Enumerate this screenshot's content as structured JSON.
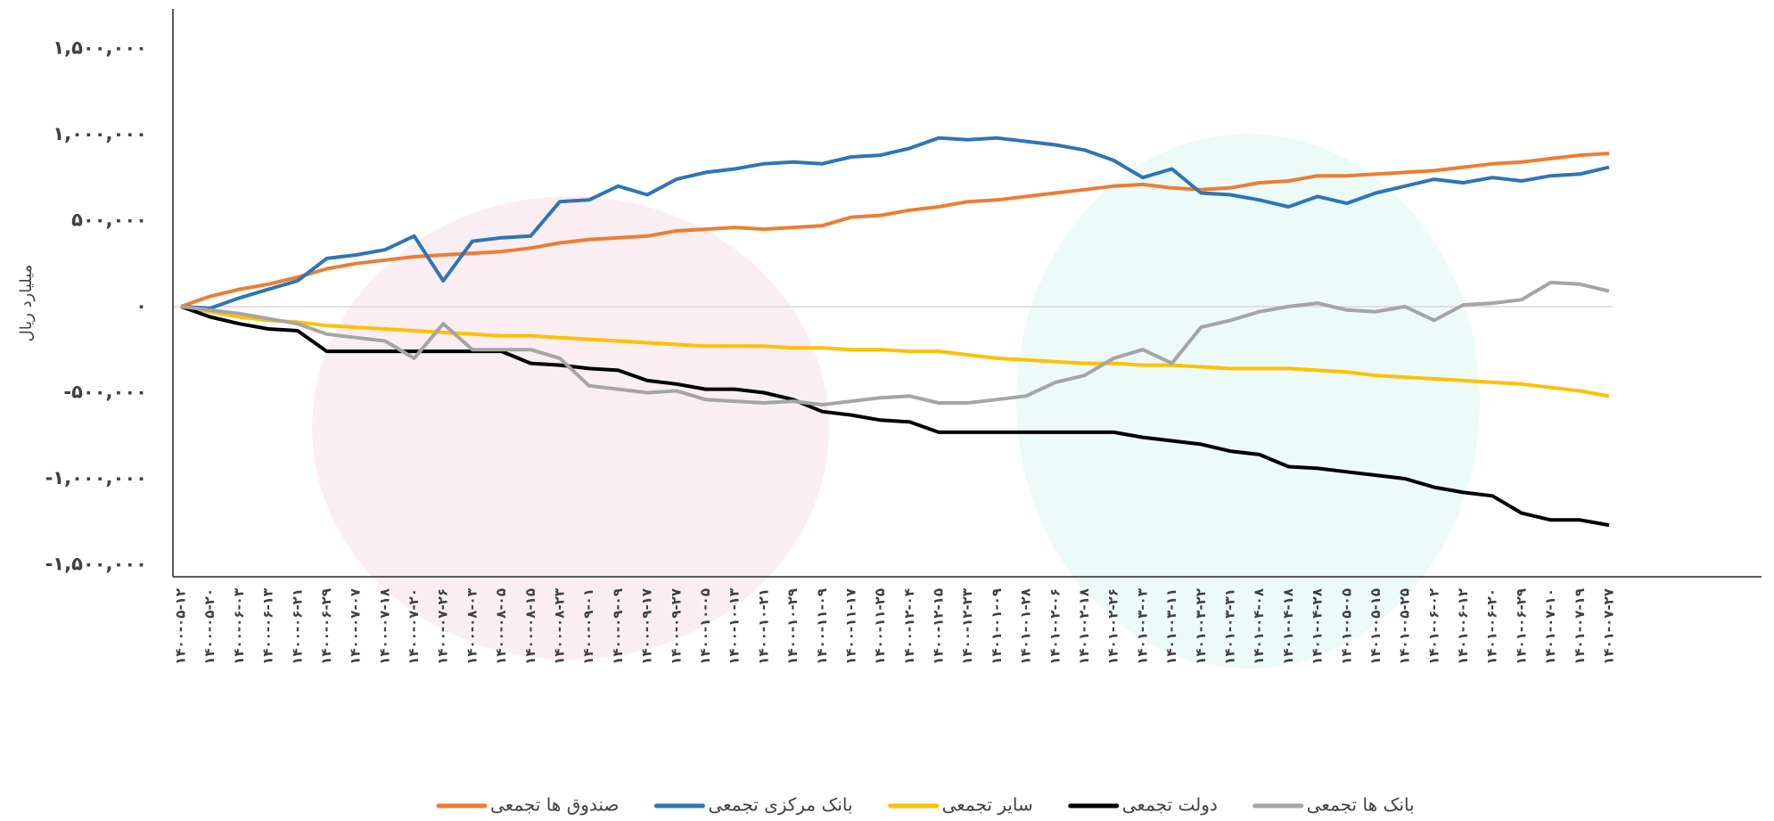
{
  "chart_data": {
    "type": "line",
    "y_label": "میلیارد ریال",
    "categories": [
      "۱۴۰۰-۰۵-۱۲",
      "۱۴۰۰-۰۵-۲۰",
      "۱۴۰۰-۰۶-۰۳",
      "۱۴۰۰-۰۶-۱۳",
      "۱۴۰۰-۰۶-۲۱",
      "۱۴۰۰-۰۶-۲۹",
      "۱۴۰۰-۰۷-۰۷",
      "۱۴۰۰-۰۷-۱۸",
      "۱۴۰۰-۰۷-۲۰",
      "۱۴۰۰-۰۷-۲۶",
      "۱۴۰۰-۰۸-۰۳",
      "۱۴۰۰-۰۸-۰۵",
      "۱۴۰۰-۰۸-۱۵",
      "۱۴۰۰-۰۸-۲۳",
      "۱۴۰۰-۰۹-۰۱",
      "۱۴۰۰-۰۹-۰۹",
      "۱۴۰۰-۰۹-۱۷",
      "۱۴۰۰-۰۹-۲۷",
      "۱۴۰۰-۱۰-۰۵",
      "۱۴۰۰-۱۰-۱۳",
      "۱۴۰۰-۱۰-۲۱",
      "۱۴۰۰-۱۰-۲۹",
      "۱۴۰۰-۱۱-۰۹",
      "۱۴۰۰-۱۱-۱۷",
      "۱۴۰۰-۱۱-۲۵",
      "۱۴۰۰-۱۲-۰۴",
      "۱۴۰۰-۱۲-۱۵",
      "۱۴۰۰-۱۲-۲۳",
      "۱۴۰۱-۰۱-۰۹",
      "۱۴۰۱-۰۱-۲۸",
      "۱۴۰۱-۰۲-۰۶",
      "۱۴۰۱-۰۲-۱۸",
      "۱۴۰۱-۰۲-۲۶",
      "۱۴۰۱-۰۳-۰۳",
      "۱۴۰۱-۰۳-۱۱",
      "۱۴۰۱-۰۳-۲۲",
      "۱۴۰۱-۰۳-۳۱",
      "۱۴۰۱-۰۴-۰۸",
      "۱۴۰۱-۰۴-۱۸",
      "۱۴۰۱-۰۴-۲۸",
      "۱۴۰۱-۰۵-۰۵",
      "۱۴۰۱-۰۵-۱۵",
      "۱۴۰۱-۰۵-۲۵",
      "۱۴۰۱-۰۶-۰۲",
      "۱۴۰۱-۰۶-۱۲",
      "۱۴۰۱-۰۶-۲۰",
      "۱۴۰۱-۰۶-۲۹",
      "۱۴۰۱-۰۷-۱۰",
      "۱۴۰۱-۰۷-۱۹",
      "۱۴۰۱-۰۷-۲۷"
    ],
    "series": [
      {
        "name": "صندوق ها تجمعی",
        "color": "#ed7d31",
        "values": [
          0,
          60000,
          100000,
          130000,
          170000,
          220000,
          250000,
          270000,
          290000,
          300000,
          310000,
          320000,
          340000,
          370000,
          390000,
          400000,
          410000,
          440000,
          450000,
          460000,
          450000,
          460000,
          470000,
          520000,
          530000,
          560000,
          580000,
          610000,
          620000,
          640000,
          660000,
          680000,
          700000,
          710000,
          690000,
          680000,
          690000,
          720000,
          730000,
          760000,
          760000,
          770000,
          780000,
          790000,
          810000,
          830000,
          840000,
          860000,
          880000,
          890000
        ]
      },
      {
        "name": "بانک مرکزی تجمعی",
        "color": "#2e75b6",
        "values": [
          0,
          -10000,
          50000,
          100000,
          150000,
          280000,
          300000,
          330000,
          410000,
          150000,
          380000,
          400000,
          410000,
          610000,
          620000,
          700000,
          650000,
          740000,
          780000,
          800000,
          830000,
          840000,
          830000,
          870000,
          880000,
          920000,
          980000,
          970000,
          980000,
          960000,
          940000,
          910000,
          850000,
          750000,
          800000,
          660000,
          650000,
          620000,
          580000,
          640000,
          600000,
          660000,
          700000,
          740000,
          720000,
          750000,
          730000,
          760000,
          770000,
          810000
        ]
      },
      {
        "name": "سایر تجمعی",
        "color": "#ffc000",
        "values": [
          0,
          -30000,
          -60000,
          -80000,
          -90000,
          -110000,
          -120000,
          -130000,
          -140000,
          -150000,
          -160000,
          -170000,
          -170000,
          -180000,
          -190000,
          -200000,
          -210000,
          -220000,
          -230000,
          -230000,
          -230000,
          -240000,
          -240000,
          -250000,
          -250000,
          -260000,
          -260000,
          -280000,
          -300000,
          -310000,
          -320000,
          -330000,
          -330000,
          -340000,
          -340000,
          -350000,
          -360000,
          -360000,
          -360000,
          -370000,
          -380000,
          -400000,
          -410000,
          -420000,
          -430000,
          -440000,
          -450000,
          -470000,
          -490000,
          -520000
        ]
      },
      {
        "name": "دولت تجمعی",
        "color": "#000000",
        "values": [
          0,
          -60000,
          -100000,
          -130000,
          -140000,
          -260000,
          -260000,
          -260000,
          -260000,
          -260000,
          -260000,
          -260000,
          -330000,
          -340000,
          -360000,
          -370000,
          -430000,
          -450000,
          -480000,
          -480000,
          -500000,
          -540000,
          -610000,
          -630000,
          -660000,
          -670000,
          -730000,
          -730000,
          -730000,
          -730000,
          -730000,
          -730000,
          -730000,
          -760000,
          -780000,
          -800000,
          -840000,
          -860000,
          -930000,
          -940000,
          -960000,
          -980000,
          -1000000,
          -1050000,
          -1080000,
          -1100000,
          -1200000,
          -1240000,
          -1240000,
          -1270000
        ]
      },
      {
        "name": "بانک ها تجمعی",
        "color": "#a5a5a5",
        "values": [
          0,
          -20000,
          -40000,
          -70000,
          -100000,
          -160000,
          -180000,
          -200000,
          -300000,
          -100000,
          -250000,
          -250000,
          -250000,
          -300000,
          -460000,
          -480000,
          -500000,
          -490000,
          -540000,
          -550000,
          -560000,
          -550000,
          -570000,
          -550000,
          -530000,
          -520000,
          -560000,
          -560000,
          -540000,
          -520000,
          -440000,
          -400000,
          -300000,
          -250000,
          -330000,
          -120000,
          -80000,
          -30000,
          0,
          20000,
          -20000,
          -30000,
          0,
          -80000,
          10000,
          20000,
          40000,
          140000,
          130000,
          90000
        ]
      }
    ],
    "ylim": [
      -1570000,
      1730000
    ],
    "yticks": [
      {
        "value": -1500000,
        "label": "-۱,۵۰۰,۰۰۰"
      },
      {
        "value": -1000000,
        "label": "-۱,۰۰۰,۰۰۰"
      },
      {
        "value": -500000,
        "label": "-۵۰۰,۰۰۰"
      },
      {
        "value": 0,
        "label": "۰"
      },
      {
        "value": 500000,
        "label": "۵۰۰,۰۰۰"
      },
      {
        "value": 1000000,
        "label": "۱,۰۰۰,۰۰۰"
      },
      {
        "value": 1500000,
        "label": "۱,۵۰۰,۰۰۰"
      }
    ],
    "legend": "bottom"
  }
}
